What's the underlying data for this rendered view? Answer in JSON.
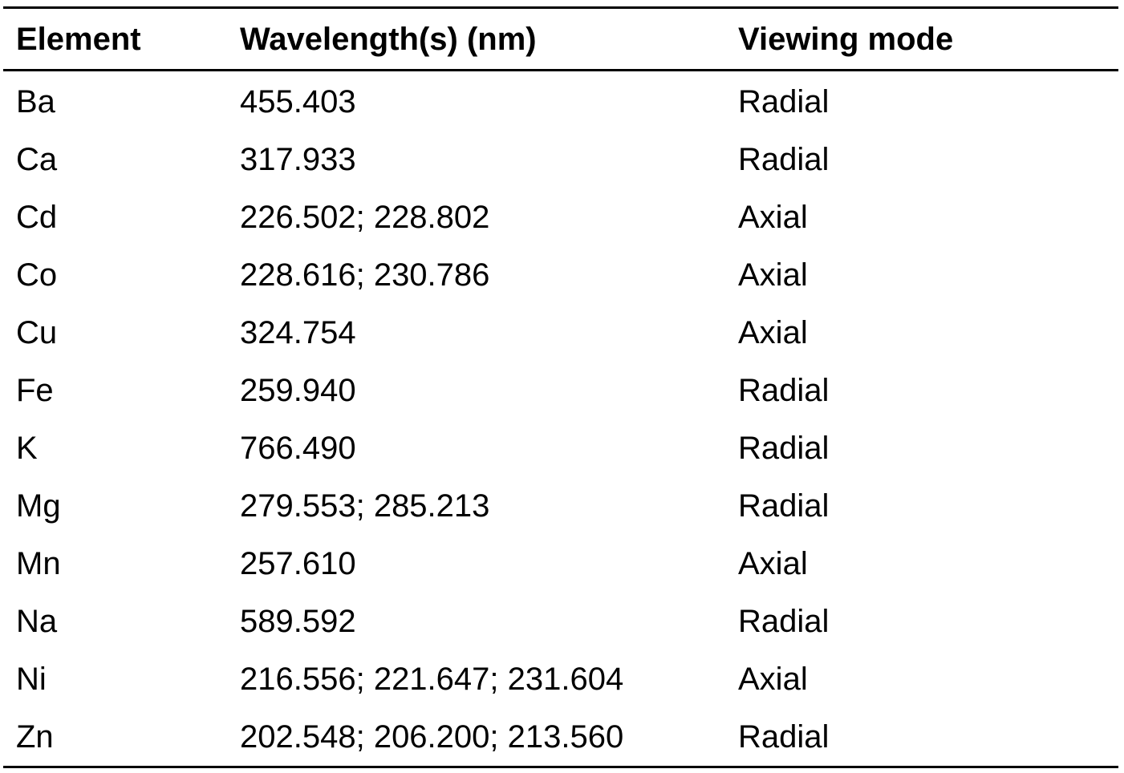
{
  "table": {
    "headers": [
      "Element",
      "Wavelength(s) (nm)",
      "Viewing mode"
    ],
    "rows": [
      [
        "Ba",
        "455.403",
        "Radial"
      ],
      [
        "Ca",
        "317.933",
        "Radial"
      ],
      [
        "Cd",
        "226.502; 228.802",
        "Axial"
      ],
      [
        "Co",
        "228.616; 230.786",
        "Axial"
      ],
      [
        "Cu",
        "324.754",
        "Axial"
      ],
      [
        "Fe",
        "259.940",
        "Radial"
      ],
      [
        "K",
        "766.490",
        "Radial"
      ],
      [
        "Mg",
        "279.553; 285.213",
        "Radial"
      ],
      [
        "Mn",
        "257.610",
        "Axial"
      ],
      [
        "Na",
        "589.592",
        "Radial"
      ],
      [
        "Ni",
        "216.556; 221.647; 231.604",
        "Axial"
      ],
      [
        "Zn",
        "202.548; 206.200; 213.560",
        "Radial"
      ]
    ]
  }
}
